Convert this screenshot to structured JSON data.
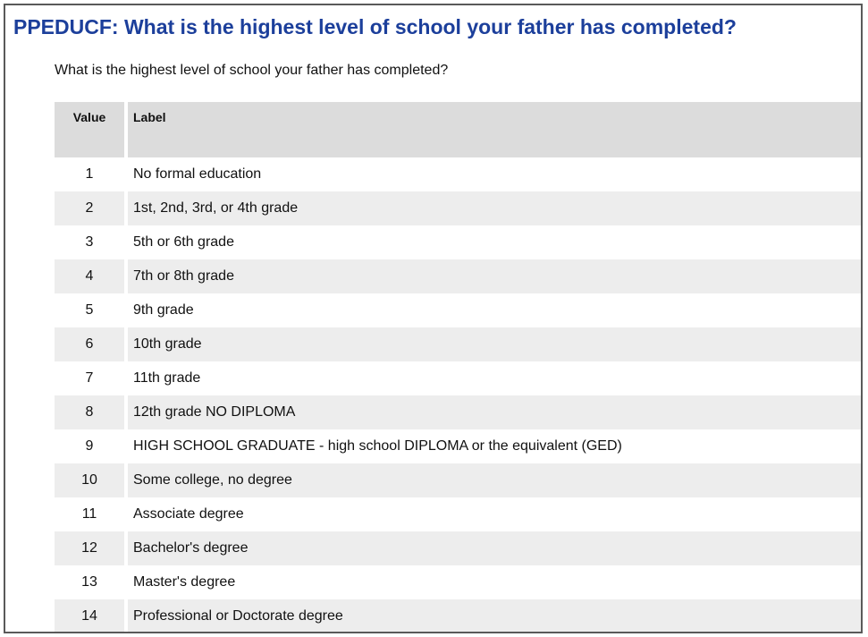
{
  "title": "PPEDUCF: What is the highest level of school your father has completed?",
  "question": "What is the highest level of school your father has completed?",
  "table": {
    "headers": {
      "value": "Value",
      "label": "Label"
    },
    "rows": [
      {
        "value": "1",
        "label": "No formal education"
      },
      {
        "value": "2",
        "label": "1st, 2nd, 3rd, or 4th grade"
      },
      {
        "value": "3",
        "label": "5th or 6th grade"
      },
      {
        "value": "4",
        "label": "7th or 8th grade"
      },
      {
        "value": "5",
        "label": "9th grade"
      },
      {
        "value": "6",
        "label": "10th grade"
      },
      {
        "value": "7",
        "label": "11th grade"
      },
      {
        "value": "8",
        "label": "12th grade NO DIPLOMA"
      },
      {
        "value": "9",
        "label": "HIGH SCHOOL GRADUATE - high school DIPLOMA or the equivalent (GED)"
      },
      {
        "value": "10",
        "label": "Some college, no degree"
      },
      {
        "value": "11",
        "label": "Associate degree"
      },
      {
        "value": "12",
        "label": "Bachelor's degree"
      },
      {
        "value": "13",
        "label": "Master's degree"
      },
      {
        "value": "14",
        "label": "Professional or Doctorate degree"
      }
    ]
  }
}
